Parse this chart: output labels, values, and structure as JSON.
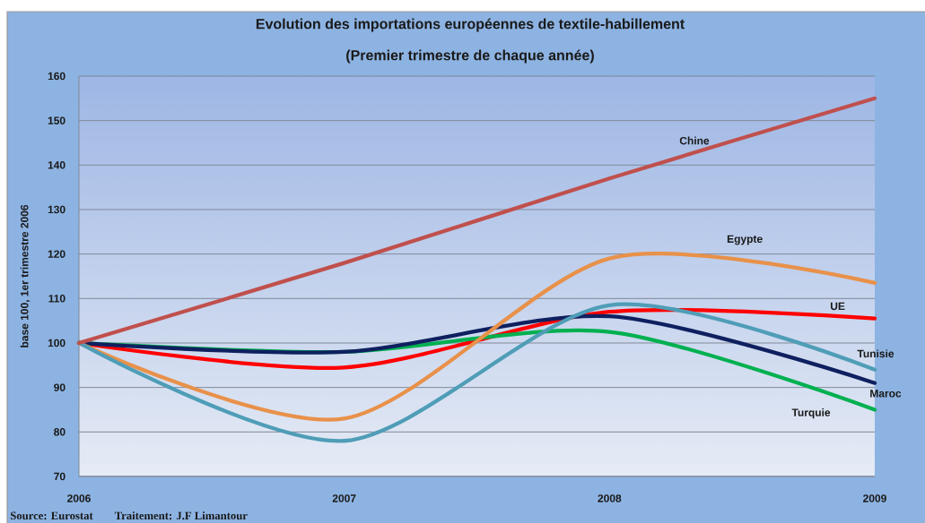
{
  "chart_data": {
    "type": "line",
    "title": "Evolution des importations européennes de textile-habillement",
    "subtitle": "(Premier trimestre de chaque année)",
    "ylabel": "base 100, 1er trimestre 2006",
    "x": [
      2006,
      2007,
      2008,
      2009
    ],
    "xlim": [
      2006,
      2009
    ],
    "xticks": [
      2006,
      2007,
      2008,
      2009
    ],
    "ylim": [
      70,
      160
    ],
    "yticks": [
      70,
      80,
      90,
      100,
      110,
      120,
      130,
      140,
      150,
      160
    ],
    "grid": "y",
    "marker": "none",
    "line_style": "solid",
    "series": [
      {
        "name": "UE",
        "color": "#ff0000",
        "values": [
          100,
          94.5,
          107,
          105.5
        ]
      },
      {
        "name": "Turquie",
        "color": "#00b050",
        "values": [
          100,
          98,
          102.5,
          85
        ]
      },
      {
        "name": "Maroc",
        "color": "#0f2060",
        "values": [
          100,
          98,
          106,
          91
        ]
      },
      {
        "name": "Egypte",
        "color": "#e8914a",
        "values": [
          100,
          83,
          119,
          113.5
        ]
      },
      {
        "name": "Tunisie",
        "color": "#4f9db7",
        "values": [
          100,
          78,
          108.5,
          94
        ]
      },
      {
        "name": "Chine",
        "color": "#c0504d",
        "values": [
          100,
          118,
          137,
          155
        ]
      }
    ],
    "annotations": [
      "Source: Eurostat",
      "Traitement: J.F Limantour"
    ]
  }
}
